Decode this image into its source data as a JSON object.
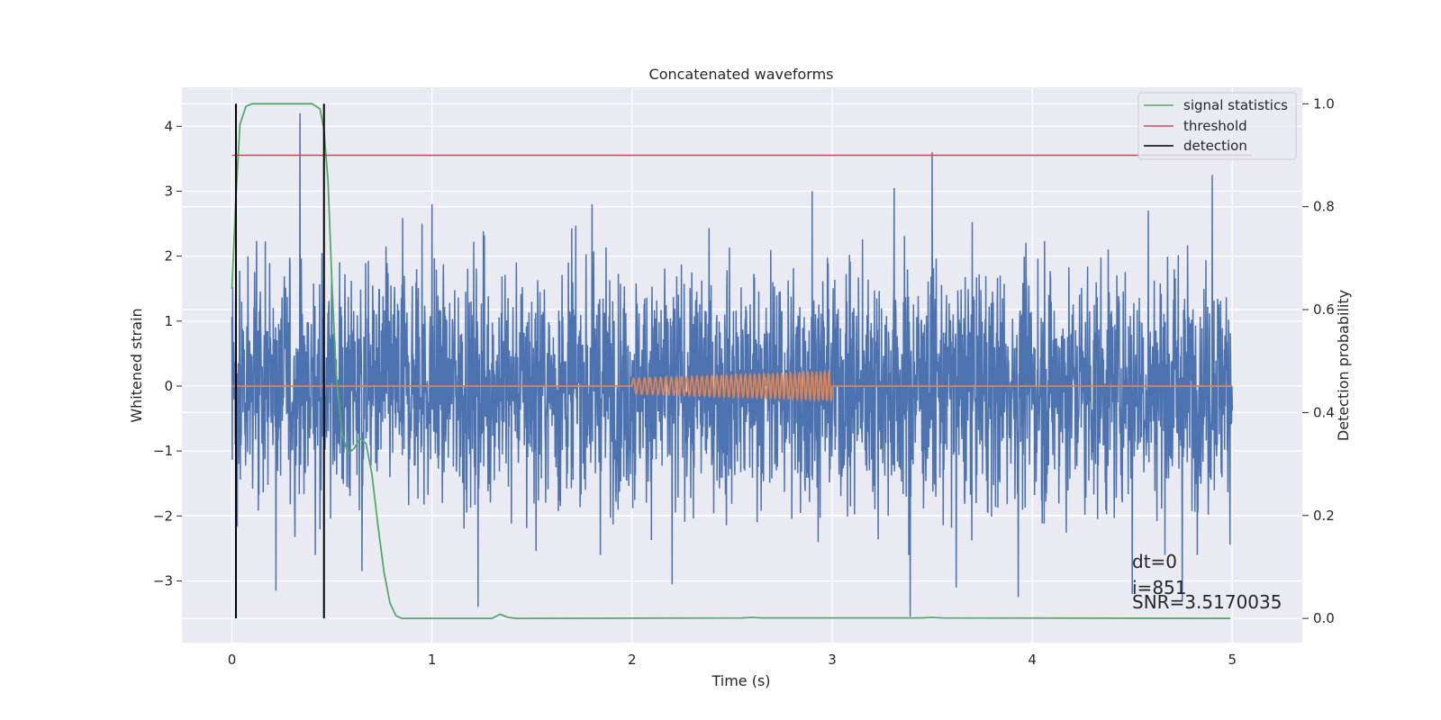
{
  "chart_data": {
    "type": "line",
    "title": "Concatenated waveforms",
    "xlabel": "Time (s)",
    "ylabel": "Whitened strain",
    "y2label": "Detection probability",
    "xlim": [
      -0.25,
      5.35
    ],
    "ylim": [
      -3.95,
      4.6
    ],
    "y2lim": [
      -0.047,
      1.032
    ],
    "xticks": [
      0,
      1,
      2,
      3,
      4,
      5
    ],
    "xtick_labels": [
      "0",
      "1",
      "2",
      "3",
      "4",
      "5"
    ],
    "yticks": [
      -3,
      -2,
      -1,
      0,
      1,
      2,
      3,
      4
    ],
    "ytick_labels": [
      "−3",
      "−2",
      "−1",
      "0",
      "1",
      "2",
      "3",
      "4"
    ],
    "y2ticks": [
      0.0,
      0.2,
      0.4,
      0.6,
      0.8,
      1.0
    ],
    "y2tick_labels": [
      "0.0",
      "0.2",
      "0.4",
      "0.6",
      "0.8",
      "1.0"
    ],
    "grid": true,
    "legend_position": "top-right",
    "colors": {
      "background": "#eaeaf2",
      "grid": "#ffffff",
      "strain": "#4c72b0",
      "template": "#dd8452",
      "statistics": "#55a868",
      "threshold": "#c44e52",
      "detection": "#000000"
    },
    "series": [
      {
        "name": "",
        "role": "strain",
        "x_range": [
          0,
          5
        ],
        "typical_amplitude": 1.2,
        "spikes": [
          [
            0.02,
            1.85
          ],
          [
            0.08,
            2.0
          ],
          [
            0.22,
            -3.15
          ],
          [
            0.34,
            4.2
          ],
          [
            0.45,
            2.05
          ],
          [
            0.65,
            -2.85
          ],
          [
            0.95,
            2.5
          ],
          [
            1.0,
            2.8
          ],
          [
            1.23,
            -3.4
          ],
          [
            1.8,
            2.8
          ],
          [
            2.2,
            -3.05
          ],
          [
            2.9,
            3.0
          ],
          [
            3.31,
            3.05
          ],
          [
            3.39,
            -3.55
          ],
          [
            3.5,
            3.6
          ],
          [
            3.62,
            -3.1
          ],
          [
            3.93,
            -3.25
          ],
          [
            4.5,
            -3.2
          ],
          [
            4.58,
            2.7
          ],
          [
            4.75,
            -3.3
          ],
          [
            4.9,
            3.25
          ]
        ]
      },
      {
        "name": "",
        "role": "template",
        "x_range": [
          0,
          5
        ],
        "chirp": {
          "t_start": 2.0,
          "t_end": 3.0,
          "amp_start": 0.12,
          "amp_end": 0.22,
          "cycles": 42
        }
      },
      {
        "name": "signal statistics",
        "axis": "right",
        "points": [
          [
            0.0,
            0.64
          ],
          [
            0.02,
            0.82
          ],
          [
            0.04,
            0.96
          ],
          [
            0.07,
            0.995
          ],
          [
            0.1,
            1.0
          ],
          [
            0.3,
            1.0
          ],
          [
            0.4,
            1.0
          ],
          [
            0.44,
            0.99
          ],
          [
            0.46,
            0.95
          ],
          [
            0.48,
            0.85
          ],
          [
            0.5,
            0.65
          ],
          [
            0.52,
            0.48
          ],
          [
            0.55,
            0.36
          ],
          [
            0.58,
            0.32
          ],
          [
            0.61,
            0.33
          ],
          [
            0.64,
            0.35
          ],
          [
            0.67,
            0.34
          ],
          [
            0.7,
            0.28
          ],
          [
            0.73,
            0.18
          ],
          [
            0.76,
            0.09
          ],
          [
            0.79,
            0.03
          ],
          [
            0.82,
            0.005
          ],
          [
            0.85,
            0.0
          ],
          [
            1.3,
            0.0
          ],
          [
            1.34,
            0.008
          ],
          [
            1.38,
            0.002
          ],
          [
            1.42,
            0.0
          ],
          [
            2.55,
            0.001
          ],
          [
            2.6,
            0.002
          ],
          [
            2.65,
            0.001
          ],
          [
            3.45,
            0.001
          ],
          [
            3.5,
            0.002
          ],
          [
            3.55,
            0.001
          ],
          [
            4.99,
            0.0
          ]
        ]
      },
      {
        "name": "threshold",
        "axis": "right",
        "points": [
          [
            0.0,
            0.9
          ],
          [
            5.1,
            0.9
          ]
        ]
      },
      {
        "name": "detection",
        "axis": "right",
        "events": [
          0.02,
          0.46
        ],
        "y_range": [
          0.0,
          1.0
        ]
      }
    ],
    "annotations": [
      "dt=0",
      "i=851",
      "SNR=3.5170035"
    ]
  }
}
